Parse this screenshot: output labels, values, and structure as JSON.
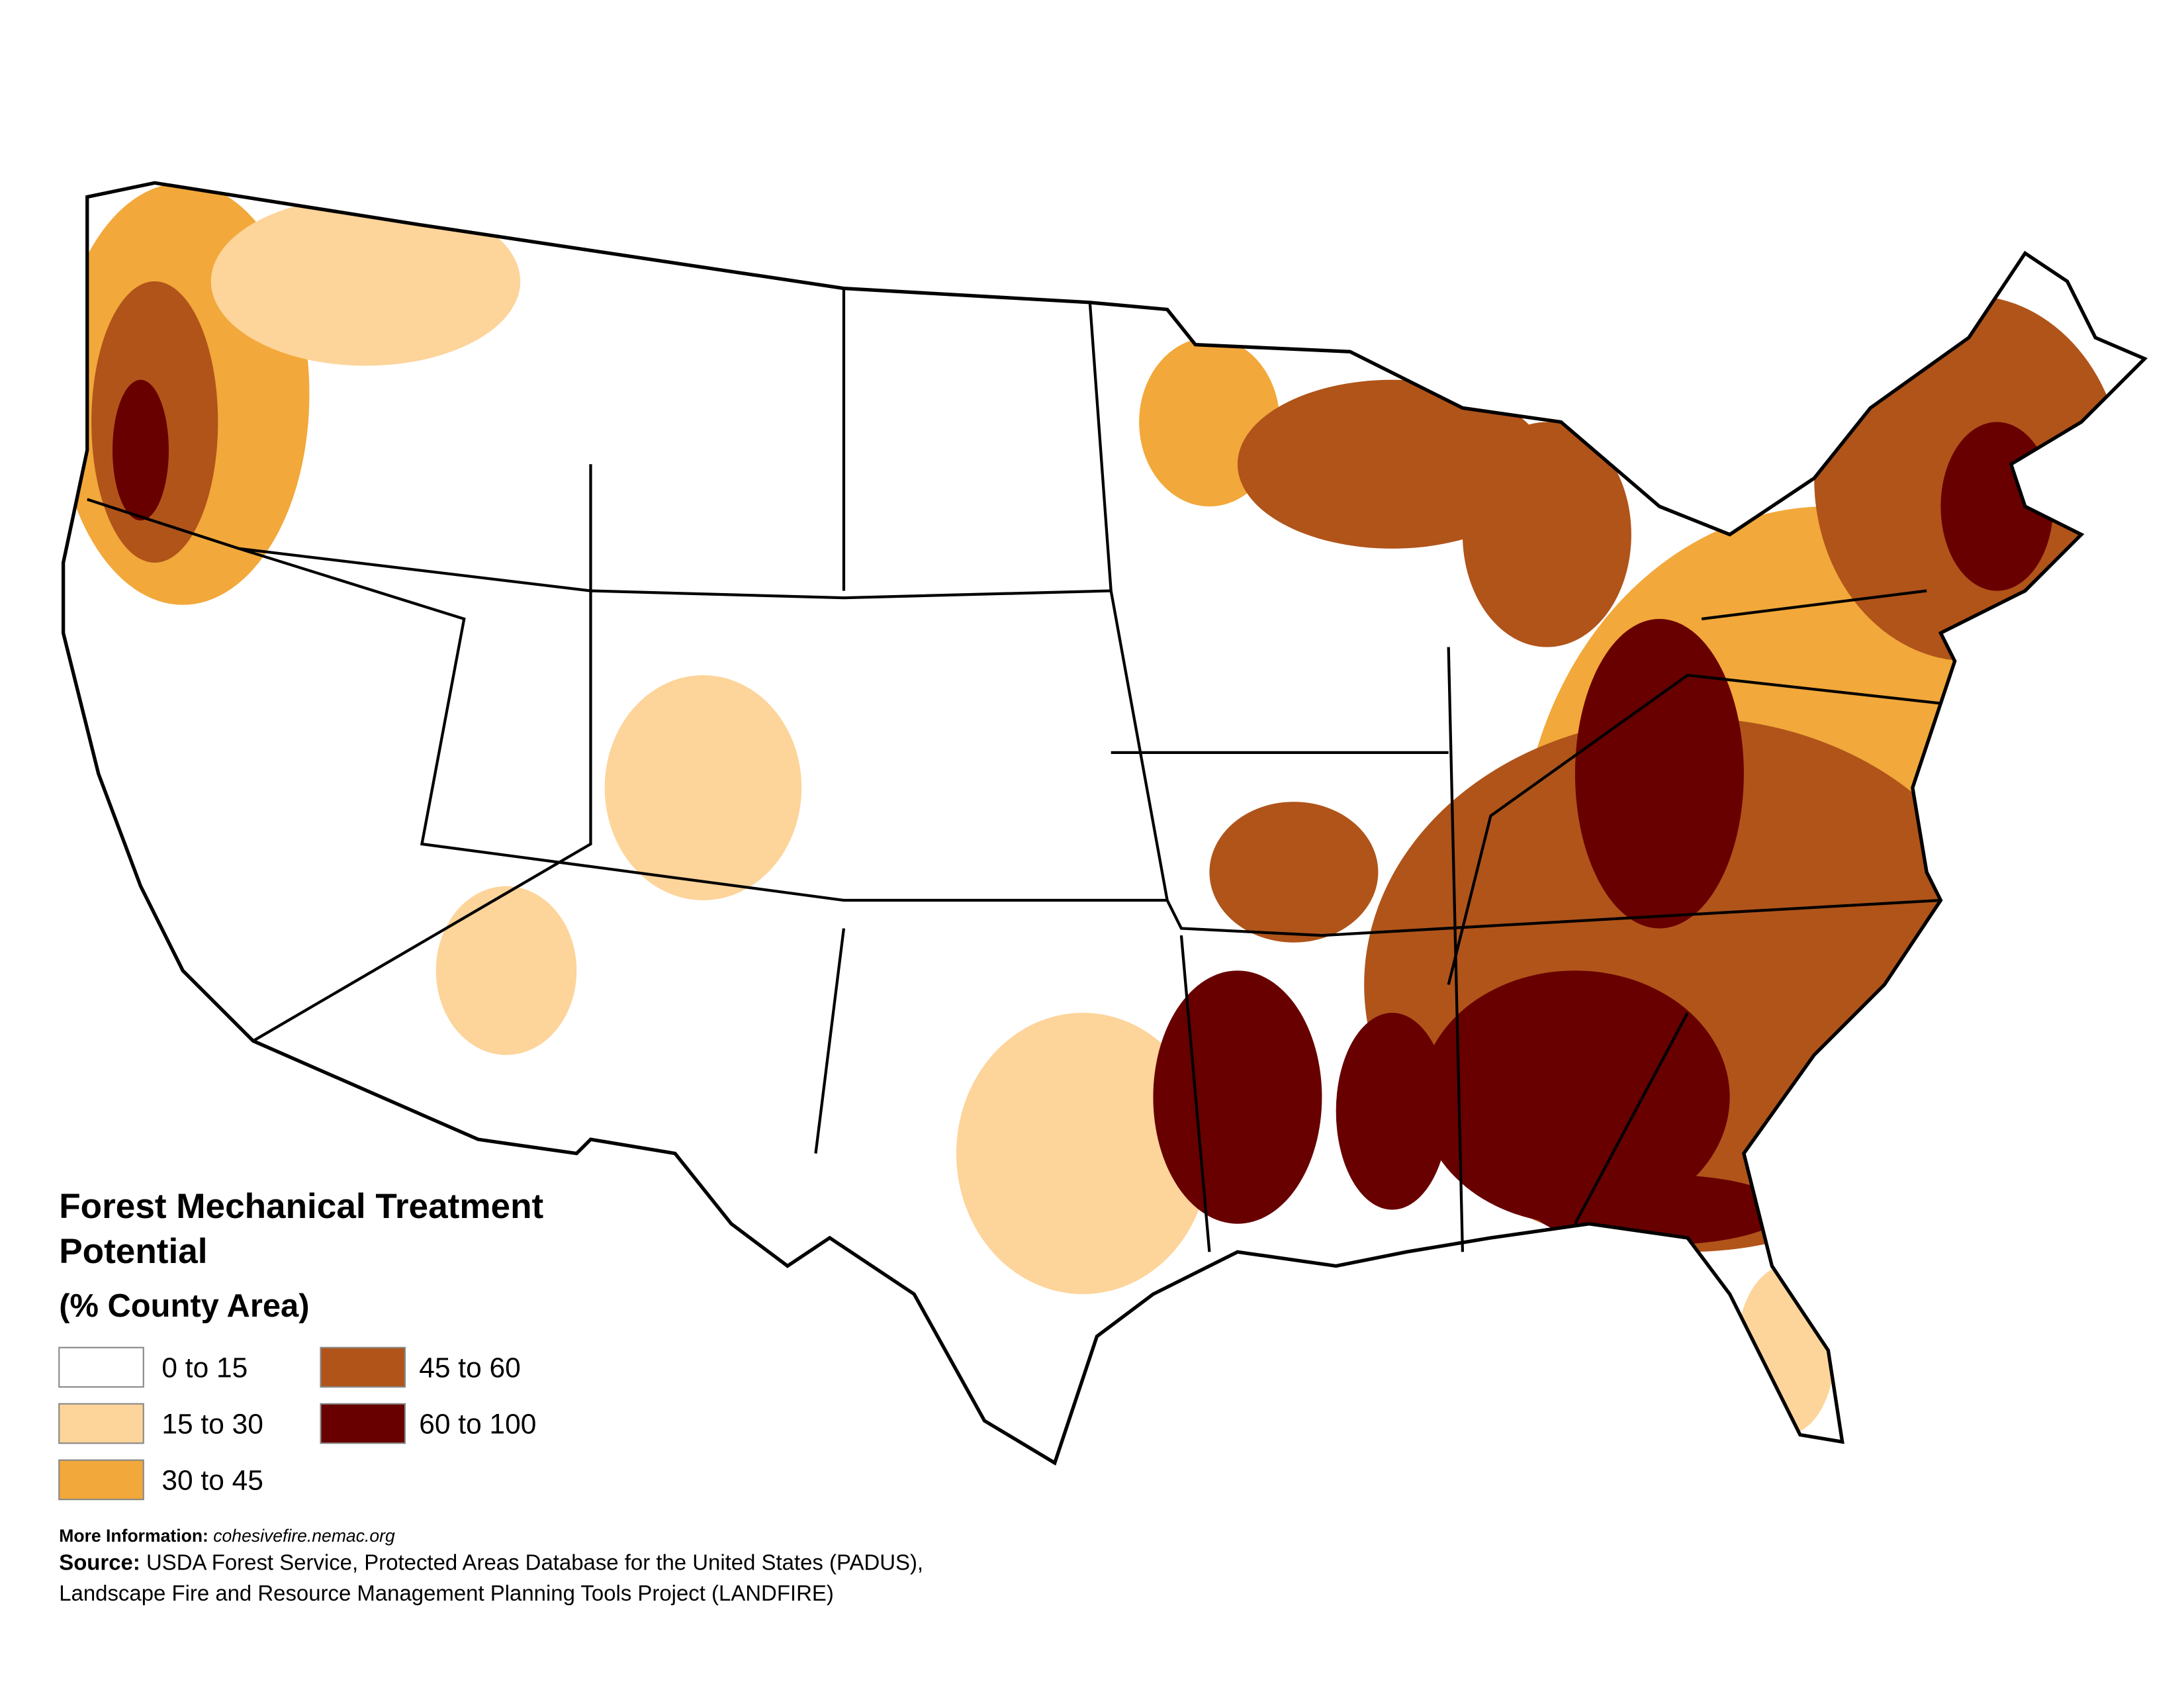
{
  "title_lines": [
    "Forest Mechanical Treatment",
    "Potential"
  ],
  "subtitle": "(% County Area)",
  "legend": [
    {
      "label": "0 to 15",
      "color": "#ffffff"
    },
    {
      "label": "15 to 30",
      "color": "#fdd49a"
    },
    {
      "label": "30 to 45",
      "color": "#f2a83a"
    },
    {
      "label": "45 to 60",
      "color": "#b0541a"
    },
    {
      "label": "60 to 100",
      "color": "#680000"
    }
  ],
  "more_info": {
    "label": "More Information:",
    "url": "cohesivefire.nemac.org"
  },
  "source": {
    "label": "Source:",
    "lines": [
      "USDA Forest Service, Protected Areas Database for the United States (PADUS),",
      "Landscape Fire and Resource Management Planning Tools Project (LANDFIRE)"
    ]
  }
}
